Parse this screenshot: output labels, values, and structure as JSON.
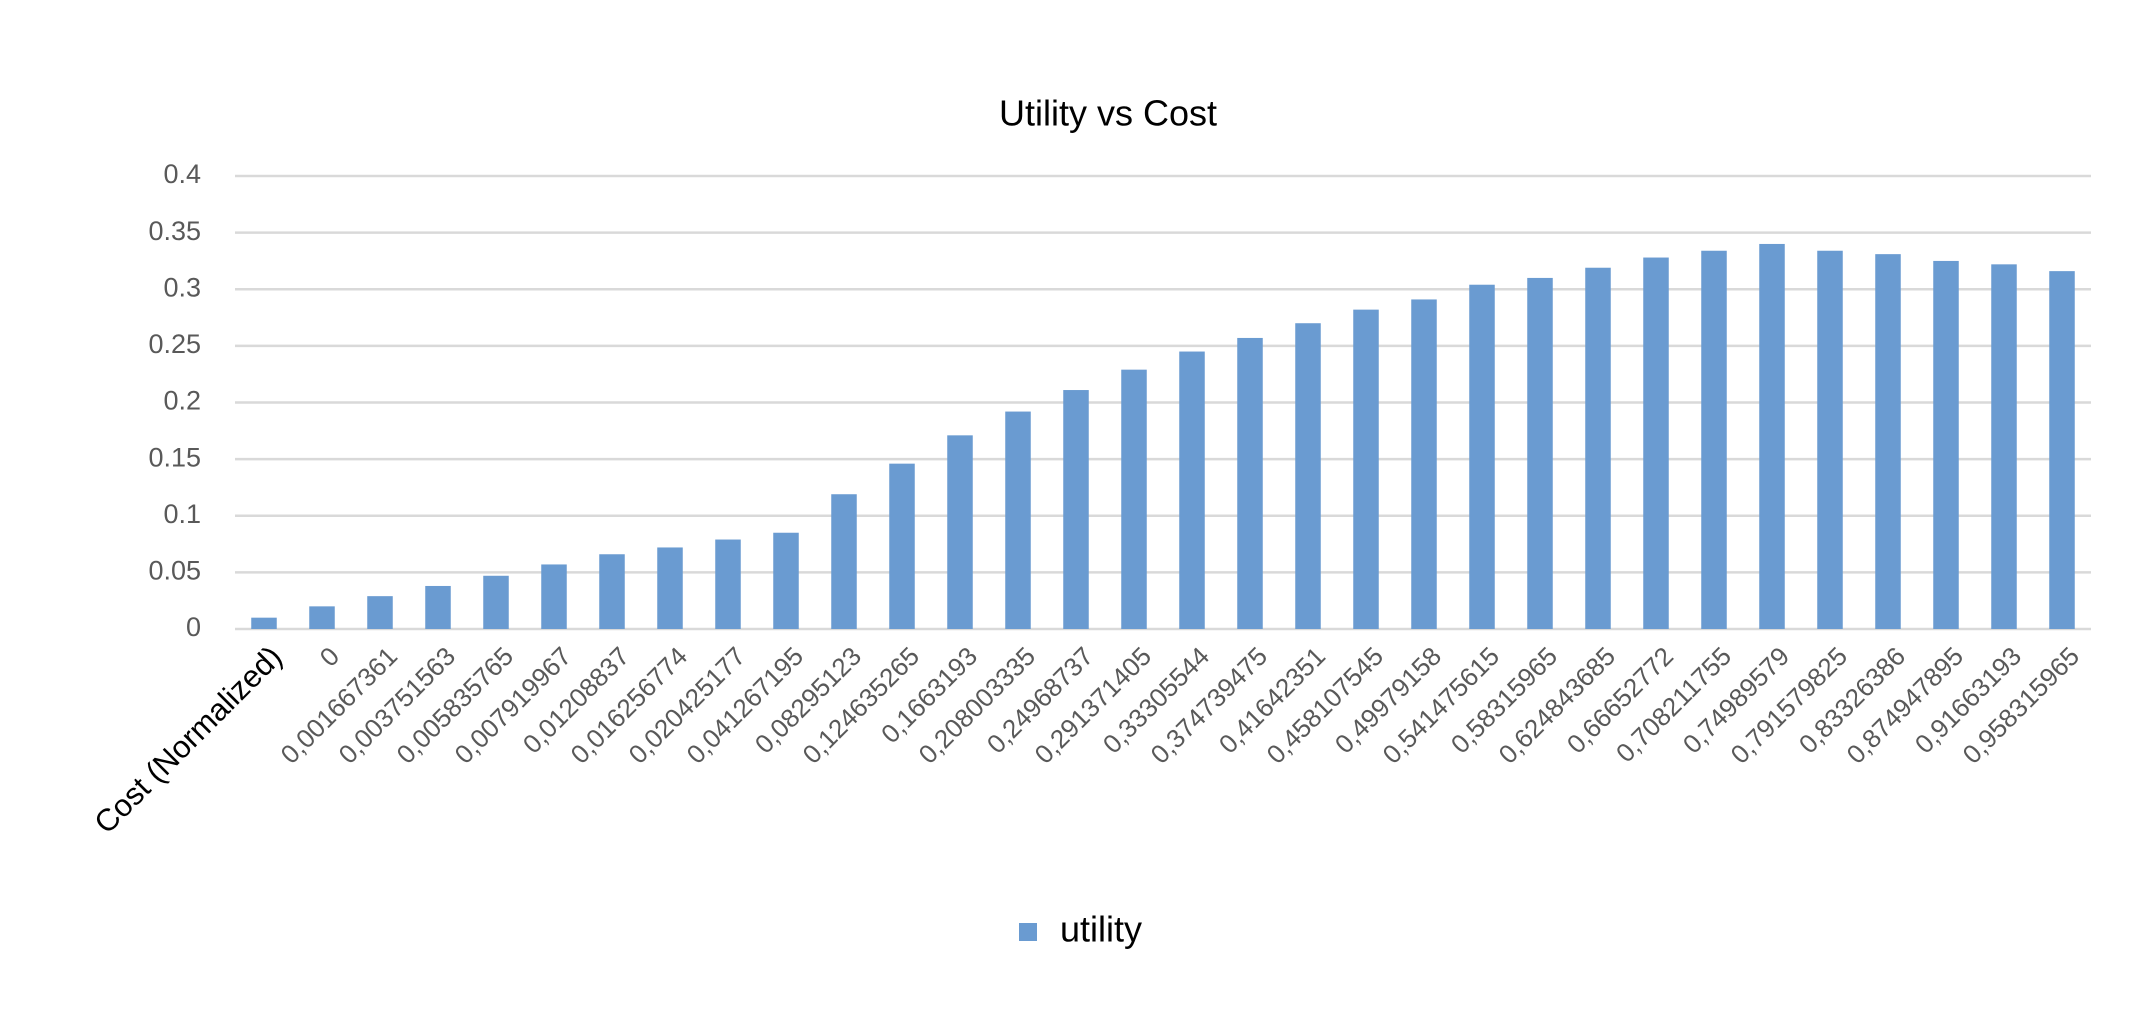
{
  "chart_data": {
    "type": "bar",
    "title": "Utility vs Cost",
    "categories": [
      "Cost (Normalized)",
      "0",
      "0,001667361",
      "0,003751563",
      "0,005835765",
      "0,007919967",
      "0,01208837",
      "0,016256774",
      "0,020425177",
      "0,041267195",
      "0,08295123",
      "0,124635265",
      "0,1663193",
      "0,208003335",
      "0,24968737",
      "0,291371405",
      "0,33305544",
      "0,374739475",
      "0,41642351",
      "0,458107545",
      "0,49979158",
      "0,541475615",
      "0,58315965",
      "0,624843685",
      "0,66652772",
      "0,708211755",
      "0,74989579",
      "0,791579825",
      "0,83326386",
      "0,874947895",
      "0,91663193",
      "0,958315965"
    ],
    "series": [
      {
        "name": "utility",
        "color": "#6a9bd1",
        "values": [
          0.01,
          0.02,
          0.029,
          0.038,
          0.047,
          0.057,
          0.066,
          0.072,
          0.079,
          0.085,
          0.119,
          0.146,
          0.171,
          0.192,
          0.211,
          0.229,
          0.245,
          0.257,
          0.27,
          0.282,
          0.291,
          0.304,
          0.31,
          0.319,
          0.328,
          0.334,
          0.34,
          0.334,
          0.331,
          0.325,
          0.322,
          0.316
        ]
      }
    ],
    "ylim": [
      0,
      0.4
    ],
    "yticks": [
      0,
      0.05,
      0.1,
      0.15,
      0.2,
      0.25,
      0.3,
      0.35,
      0.4
    ],
    "grid": true,
    "legend": "bottom"
  }
}
